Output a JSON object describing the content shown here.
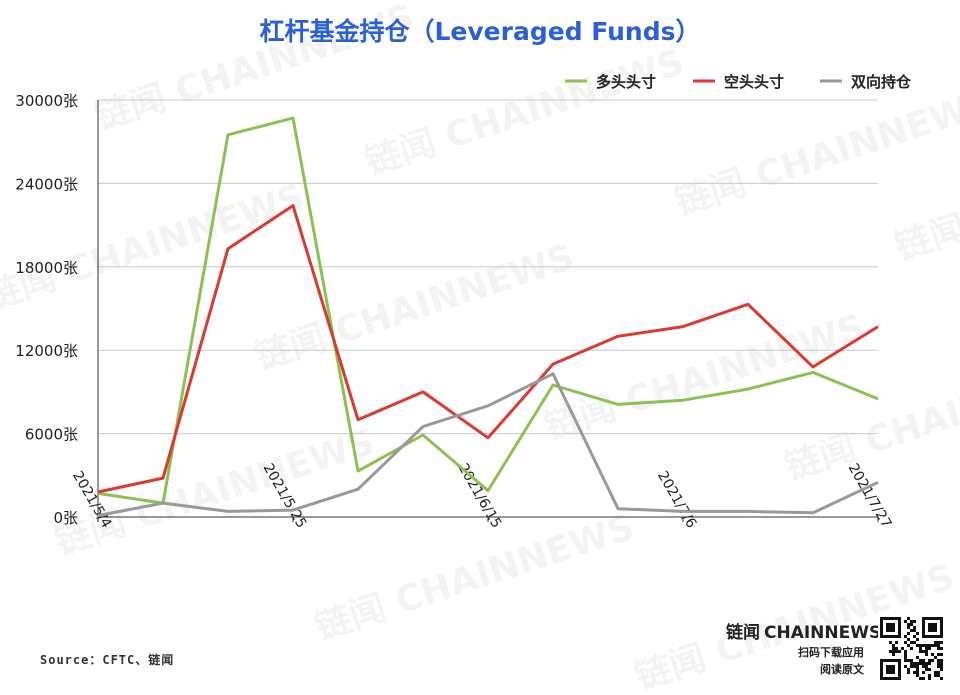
{
  "chart_data": {
    "type": "line",
    "title": "杠杆基金持仓（Leveraged Funds）",
    "x_tick_labels": [
      "2021/5/4",
      "2021/5/25",
      "2021/6/15",
      "2021/7/6",
      "2021/7/27"
    ],
    "y_tick_labels": [
      "0张",
      "6000张",
      "12000张",
      "18000张",
      "24000张",
      "30000张"
    ],
    "ylim": [
      0,
      30000
    ],
    "grid": true,
    "legend_position": "top-right",
    "series": [
      {
        "name": "多头头寸",
        "color": "#8cc152",
        "values": [
          1700,
          1000,
          27500,
          28700,
          3300,
          5900,
          1900,
          9500,
          8100,
          8400,
          9200,
          10400,
          8500
        ]
      },
      {
        "name": "空头头寸",
        "color": "#dd3a2f",
        "values": [
          1800,
          2800,
          19300,
          22400,
          7000,
          9000,
          5700,
          11000,
          13000,
          13700,
          15300,
          10800,
          13700
        ]
      },
      {
        "name": "双向持仓",
        "color": "#999999",
        "values": [
          100,
          1000,
          400,
          500,
          2000,
          6500,
          8000,
          10300,
          600,
          400,
          400,
          300,
          2500
        ]
      }
    ]
  },
  "source": "Source：CFTC、链闻",
  "brand": {
    "name_cn": "链闻",
    "name_en": "CHAINNEWS",
    "line1": "扫码下载应用",
    "line2": "阅读原文"
  },
  "watermark_text": "链闻 CHAINNEWS"
}
